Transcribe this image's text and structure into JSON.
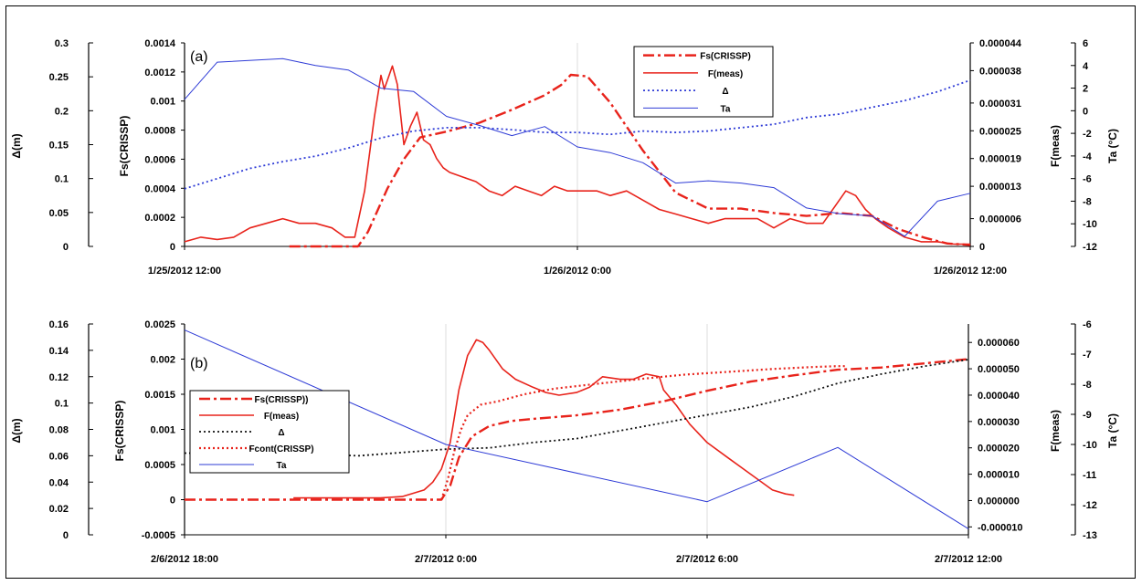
{
  "chart_data": [
    {
      "id": "a",
      "type": "line",
      "panel_label": "(a)",
      "x_ticks": [
        "1/25/2012 12:00",
        "1/26/2012 0:00",
        "1/26/2012 12:00"
      ],
      "x_range_hours": [
        0,
        24
      ],
      "axes": {
        "delta": {
          "label": "Δ(m)",
          "min": 0,
          "max": 0.3,
          "ticks": [
            "0",
            "0.05",
            "0.1",
            "0.15",
            "0.2",
            "0.25",
            "0.3"
          ]
        },
        "fs": {
          "label": "Fs(CRISSP)",
          "min": 0,
          "max": 0.0014,
          "ticks": [
            "0",
            "0.0002",
            "0.0004",
            "0.0006",
            "0.0008",
            "0.001",
            "0.0012",
            "0.0014"
          ]
        },
        "fmeas": {
          "label": "F(meas)",
          "min": 0,
          "max": 4.4e-05,
          "ticks": [
            "0",
            "0.000006",
            "0.000013",
            "0.000019",
            "0.000025",
            "0.000031",
            "0.000038",
            "0.000044"
          ]
        },
        "ta": {
          "label": "Ta (°C)",
          "min": -12,
          "max": 6,
          "ticks": [
            "-12",
            "-10",
            "-8",
            "-6",
            "-4",
            "-2",
            "0",
            "2",
            "4",
            "6"
          ]
        }
      },
      "legend": [
        {
          "key": "fs",
          "label": "Fs(CRISSP)"
        },
        {
          "key": "fmeas",
          "label": "F(meas)"
        },
        {
          "key": "delta",
          "label": "Δ"
        },
        {
          "key": "ta",
          "label": "Ta"
        }
      ],
      "series": [
        {
          "name": "Fs(CRISSP)",
          "axis": "fs",
          "color": "#e8231b",
          "dash": "dashdot",
          "x": [
            3.2,
            5.3,
            5.6,
            6.2,
            6.7,
            7.2,
            8.0,
            9.0,
            10.0,
            11.0,
            11.5,
            11.8,
            12.3,
            13.0,
            14.0,
            15.0,
            16.0,
            17.0,
            18.0,
            19.0,
            20.0,
            21.0,
            21.8,
            22.6,
            23.3,
            24.0
          ],
          "y": [
            0,
            0,
            0.0001,
            0.0004,
            0.0006,
            0.00075,
            0.00079,
            0.00085,
            0.00094,
            0.00104,
            0.00111,
            0.00118,
            0.00117,
            0.00099,
            0.00066,
            0.00037,
            0.00026,
            0.00026,
            0.00023,
            0.00021,
            0.00023,
            0.00021,
            0.00012,
            6e-05,
            2e-05,
            1e-05
          ]
        },
        {
          "name": "F(meas)",
          "axis": "fmeas",
          "color": "#e8231b",
          "dash": "solid",
          "x": [
            0,
            0.5,
            1.0,
            1.5,
            2.0,
            2.5,
            3.0,
            3.5,
            4.0,
            4.5,
            4.9,
            5.2,
            5.5,
            5.8,
            6.0,
            6.1,
            6.2,
            6.35,
            6.5,
            6.7,
            6.9,
            7.1,
            7.3,
            7.5,
            7.7,
            7.9,
            8.1,
            8.5,
            8.9,
            9.3,
            9.7,
            10.1,
            10.5,
            10.9,
            11.3,
            11.7,
            12.2,
            12.6,
            13.0,
            13.5,
            14.0,
            14.5,
            15.0,
            15.5,
            16.0,
            16.5,
            17.0,
            17.5,
            18.0,
            18.5,
            19.0,
            19.5,
            19.9,
            20.2,
            20.5,
            20.8,
            21.1,
            21.5,
            22.0,
            22.5,
            23.0,
            23.5,
            24.0
          ],
          "y": [
            1e-06,
            2e-06,
            1.5e-06,
            2e-06,
            4e-06,
            5e-06,
            6e-06,
            5e-06,
            5e-06,
            4e-06,
            2e-06,
            2e-06,
            1.2e-05,
            2.8e-05,
            3.7e-05,
            3.4e-05,
            3.6e-05,
            3.9e-05,
            3.5e-05,
            2.2e-05,
            2.6e-05,
            2.9e-05,
            2.3e-05,
            2.2e-05,
            1.9e-05,
            1.7e-05,
            1.6e-05,
            1.5e-05,
            1.4e-05,
            1.2e-05,
            1.1e-05,
            1.3e-05,
            1.2e-05,
            1.1e-05,
            1.3e-05,
            1.2e-05,
            1.2e-05,
            1.2e-05,
            1.1e-05,
            1.2e-05,
            1e-05,
            8e-06,
            7e-06,
            6e-06,
            5e-06,
            6e-06,
            6e-06,
            6e-06,
            4e-06,
            6e-06,
            5e-06,
            5e-06,
            9e-06,
            1.2e-05,
            1.1e-05,
            8e-06,
            6e-06,
            4e-06,
            2e-06,
            1e-06,
            1e-06,
            5e-07,
            5e-07
          ]
        },
        {
          "name": "Δ",
          "axis": "delta",
          "color": "#2e3bd6",
          "dash": "dotted",
          "x": [
            0,
            1,
            2,
            3,
            4,
            5,
            6,
            7,
            8,
            9,
            10,
            11,
            12,
            13,
            14,
            15,
            16,
            17,
            18,
            19,
            20,
            21,
            22,
            23,
            24
          ],
          "y": [
            0.085,
            0.1,
            0.115,
            0.125,
            0.133,
            0.145,
            0.16,
            0.17,
            0.175,
            0.175,
            0.172,
            0.168,
            0.168,
            0.165,
            0.17,
            0.168,
            0.17,
            0.175,
            0.18,
            0.19,
            0.195,
            0.205,
            0.215,
            0.228,
            0.245
          ]
        },
        {
          "name": "Ta",
          "axis": "ta",
          "color": "#2e3bd6",
          "dash": "solid",
          "x": [
            0,
            1,
            3,
            4,
            5,
            6,
            7,
            8,
            9,
            10,
            11,
            12,
            13,
            14,
            15,
            16,
            17,
            18,
            19,
            20,
            21,
            22,
            23,
            24
          ],
          "y": [
            1,
            4.3,
            4.6,
            4.0,
            3.6,
            2.0,
            1.7,
            -0.5,
            -1.3,
            -2.2,
            -1.4,
            -3.2,
            -3.7,
            -4.6,
            -6.4,
            -6.2,
            -6.4,
            -6.8,
            -8.6,
            -9.1,
            -9.3,
            -11.1,
            -8.0,
            -7.3
          ]
        }
      ]
    },
    {
      "id": "b",
      "type": "line",
      "panel_label": "(b)",
      "x_ticks": [
        "2/6/2012 18:00",
        "2/7/2012 0:00",
        "2/7/2012 6:00",
        "2/7/2012 12:00"
      ],
      "x_range_hours": [
        0,
        18
      ],
      "axes": {
        "delta": {
          "label": "Δ(m)",
          "min": 0,
          "max": 0.16,
          "ticks": [
            "0",
            "0.02",
            "0.04",
            "0.06",
            "0.08",
            "0.1",
            "0.12",
            "0.14",
            "0.16"
          ]
        },
        "fs": {
          "label": "Fs(CRISSP)",
          "min": -0.0005,
          "max": 0.0025,
          "ticks": [
            "-0.0005",
            "0",
            "0.0005",
            "0.001",
            "0.0015",
            "0.002",
            "0.0025"
          ]
        },
        "fmeas": {
          "label": "F(meas)",
          "min": -1.3e-05,
          "max": 6.7e-05,
          "ticks": [
            "-0.000010",
            "0.000000",
            "0.000010",
            "0.000020",
            "0.000030",
            "0.000040",
            "0.000050",
            "0.000060"
          ]
        },
        "ta": {
          "label": "Ta (°C)",
          "min": -13,
          "max": -6,
          "ticks": [
            "-13",
            "-12",
            "-11",
            "-10",
            "-9",
            "-8",
            "-7",
            "-6"
          ]
        }
      },
      "legend": [
        {
          "key": "fs",
          "label": "Fs(CRISSP))"
        },
        {
          "key": "fmeas",
          "label": "F(meas)"
        },
        {
          "key": "delta",
          "label": "Δ"
        },
        {
          "key": "fcont",
          "label": "Fcont(CRISSP)"
        },
        {
          "key": "ta",
          "label": "Ta"
        }
      ],
      "series": [
        {
          "name": "Fs(CRISSP))",
          "axis": "fs",
          "color": "#e8231b",
          "dash": "dashdot",
          "x": [
            0,
            2,
            4,
            5.5,
            5.9,
            6.1,
            6.3,
            6.6,
            7.0,
            7.5,
            8.0,
            9.0,
            10.0,
            11.0,
            12.0,
            13.0,
            14.0,
            15.0,
            16.0,
            17.0,
            18.0
          ],
          "y": [
            0,
            0,
            0,
            0,
            0,
            0.0002,
            0.0006,
            0.0009,
            0.00105,
            0.00112,
            0.00115,
            0.0012,
            0.00128,
            0.0014,
            0.00155,
            0.00168,
            0.00177,
            0.00185,
            0.00188,
            0.00194,
            0.002
          ]
        },
        {
          "name": "F(meas)",
          "axis": "fmeas",
          "color": "#e8231b",
          "dash": "solid",
          "x": [
            2.5,
            3.5,
            4.5,
            5.0,
            5.5,
            5.7,
            5.9,
            6.1,
            6.3,
            6.5,
            6.7,
            6.85,
            7.0,
            7.3,
            7.6,
            8.0,
            8.3,
            8.6,
            9.0,
            9.3,
            9.6,
            10.0,
            10.3,
            10.6,
            10.9,
            11.0,
            11.3,
            11.6,
            12.0,
            12.5,
            13.0,
            13.5,
            13.8,
            14.0
          ],
          "y": [
            1e-06,
            1e-06,
            1e-06,
            1.5e-06,
            4e-06,
            7e-06,
            1.2e-05,
            2.2e-05,
            4.2e-05,
            5.5e-05,
            6.1e-05,
            6e-05,
            5.7e-05,
            5e-05,
            4.6e-05,
            4.3e-05,
            4.1e-05,
            4e-05,
            4.1e-05,
            4.3e-05,
            4.7e-05,
            4.6e-05,
            4.6e-05,
            4.8e-05,
            4.7e-05,
            4.2e-05,
            3.6e-05,
            2.9e-05,
            2.2e-05,
            1.6e-05,
            1e-05,
            4e-06,
            2.5e-06,
            2e-06
          ]
        },
        {
          "name": "Δ",
          "axis": "delta",
          "color": "#111111",
          "dash": "dotted",
          "x": [
            0,
            2,
            4,
            6,
            7,
            8,
            9,
            10,
            11,
            12,
            13,
            14,
            15,
            16,
            17,
            18
          ],
          "y": [
            0.062,
            0.062,
            0.06,
            0.065,
            0.066,
            0.07,
            0.073,
            0.079,
            0.085,
            0.091,
            0.097,
            0.105,
            0.115,
            0.122,
            0.128,
            0.133
          ]
        },
        {
          "name": "Fcont(CRISSP)",
          "axis": "fs",
          "color": "#e8231b",
          "dash": "dotted",
          "x": [
            5.9,
            6.05,
            6.2,
            6.35,
            6.5,
            6.8,
            7.2,
            7.8,
            8.5,
            9.5,
            10.5,
            11.5,
            12.5,
            13.5,
            14.5,
            15.0,
            15.2
          ],
          "y": [
            0,
            0.0003,
            0.0007,
            0.001,
            0.0012,
            0.00135,
            0.0014,
            0.0015,
            0.00158,
            0.00165,
            0.00172,
            0.00178,
            0.00182,
            0.00186,
            0.00189,
            0.0019,
            0.0019
          ]
        },
        {
          "name": "Ta",
          "axis": "ta",
          "color": "#2e3bd6",
          "dash": "solid",
          "x": [
            0,
            6,
            12,
            15,
            18
          ],
          "y": [
            -6.2,
            -10.0,
            -11.9,
            -10.1,
            -12.8
          ]
        }
      ]
    }
  ]
}
